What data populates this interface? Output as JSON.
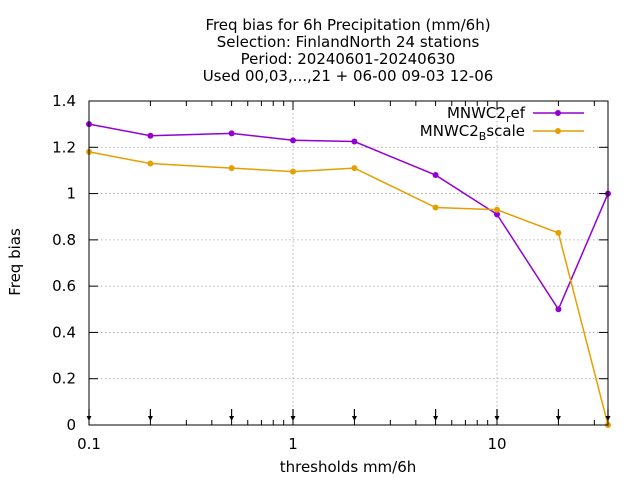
{
  "chart_data": {
    "type": "line",
    "title_lines": [
      "Freq bias  for 6h Precipitation (mm/6h)",
      "Selection: FinlandNorth     24 stations",
      "Period: 20240601-20240630",
      "Used 00,03,...,21 + 06-00 09-03 12-06"
    ],
    "xlabel": "thresholds mm/6h",
    "ylabel": "Freq bias",
    "x_scale": "log",
    "xlim": [
      0.1,
      35
    ],
    "ylim": [
      0,
      1.4
    ],
    "x_ticks": [
      0.1,
      1,
      10
    ],
    "x_tick_labels": [
      "0.1",
      "1",
      "10"
    ],
    "y_ticks": [
      0,
      0.2,
      0.4,
      0.6,
      0.8,
      1,
      1.2,
      1.4
    ],
    "y_tick_labels": [
      "0",
      "0.2",
      "0.4",
      "0.6",
      "0.8",
      "1",
      "1.2",
      "1.4"
    ],
    "grid": true,
    "legend_position": "top-right",
    "x": [
      0.1,
      0.2,
      0.5,
      1,
      2,
      5,
      10,
      20,
      35
    ],
    "series": [
      {
        "name_main": "MNWC2",
        "name_sub": "r",
        "name_rest": "ef",
        "color": "#9400d3",
        "values": [
          1.3,
          1.25,
          1.26,
          1.23,
          1.225,
          1.08,
          0.91,
          0.5,
          1.0
        ]
      },
      {
        "name_main": "MNWC2",
        "name_sub": "B",
        "name_rest": "scale",
        "color": "#e69f00",
        "values": [
          1.18,
          1.13,
          1.11,
          1.095,
          1.11,
          0.94,
          0.93,
          0.83,
          0.0
        ]
      }
    ]
  }
}
